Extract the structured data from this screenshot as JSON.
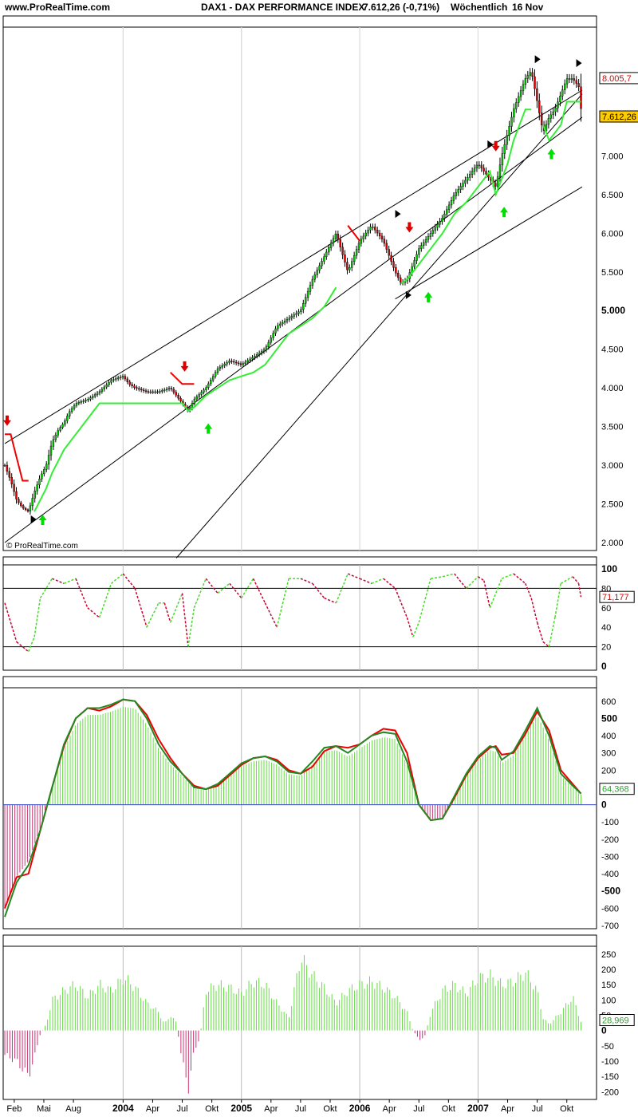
{
  "header": {
    "site": "www.ProRealTime.com",
    "title": "DAX1 - DAX PERFORMANCE INDEX",
    "quote": "7.612,26 (-0,71%)",
    "period": "Wöchentlich",
    "date": "16 Nov"
  },
  "watermark": "© ProRealTime.com",
  "x_axis": {
    "labels": [
      {
        "text": "Feb",
        "t": 0.08,
        "bold": false
      },
      {
        "text": "Mai",
        "t": 0.33,
        "bold": false
      },
      {
        "text": "Aug",
        "t": 0.58,
        "bold": false
      },
      {
        "text": "2004",
        "t": 1.0,
        "bold": true
      },
      {
        "text": "Apr",
        "t": 1.25,
        "bold": false
      },
      {
        "text": "Jul",
        "t": 1.5,
        "bold": false
      },
      {
        "text": "Okt",
        "t": 1.75,
        "bold": false
      },
      {
        "text": "2005",
        "t": 2.0,
        "bold": true
      },
      {
        "text": "Apr",
        "t": 2.25,
        "bold": false
      },
      {
        "text": "Jul",
        "t": 2.5,
        "bold": false
      },
      {
        "text": "Okt",
        "t": 2.75,
        "bold": false
      },
      {
        "text": "2006",
        "t": 3.0,
        "bold": true
      },
      {
        "text": "Apr",
        "t": 3.25,
        "bold": false
      },
      {
        "text": "Jul",
        "t": 3.5,
        "bold": false
      },
      {
        "text": "Okt",
        "t": 3.75,
        "bold": false
      },
      {
        "text": "2007",
        "t": 4.0,
        "bold": true
      },
      {
        "text": "Apr",
        "t": 4.25,
        "bold": false
      },
      {
        "text": "Jul",
        "t": 4.5,
        "bold": false
      },
      {
        "text": "Okt",
        "t": 4.75,
        "bold": false
      }
    ],
    "year_lines": [
      1.0,
      2.0,
      3.0,
      4.0
    ]
  },
  "colors": {
    "up": "#00cc00",
    "down": "#dd0000",
    "green_line": "#33ee33",
    "red_line": "#ee0000",
    "hist_pos": "#66dd44",
    "hist_neg": "#cc3377",
    "macd_line": "#228822",
    "price_label_bg": "#ffcc00",
    "grid": "#bbbbbb"
  },
  "chart_data": [
    {
      "type": "line",
      "name": "price",
      "ylim": [
        2000,
        8500
      ],
      "y_ticks": [
        {
          "v": 2000,
          "label": "2.000",
          "bold": false
        },
        {
          "v": 2500,
          "label": "2.500",
          "bold": false
        },
        {
          "v": 3000,
          "label": "3.000",
          "bold": false
        },
        {
          "v": 3500,
          "label": "3.500",
          "bold": false
        },
        {
          "v": 4000,
          "label": "4.000",
          "bold": false
        },
        {
          "v": 4500,
          "label": "4.500",
          "bold": false
        },
        {
          "v": 5000,
          "label": "5.000",
          "bold": true
        },
        {
          "v": 5500,
          "label": "5.500",
          "bold": false
        },
        {
          "v": 6000,
          "label": "6.000",
          "bold": false
        },
        {
          "v": 6500,
          "label": "6.500",
          "bold": false
        },
        {
          "v": 7000,
          "label": "7.000",
          "bold": false
        },
        {
          "v": 7500,
          "label": "7.500",
          "bold": false
        },
        {
          "v": 8000,
          "label": "8.000",
          "bold": false
        }
      ],
      "last_price": {
        "value": 7612.26,
        "label": "7.612,26"
      },
      "stop_level": {
        "value": 8005.7,
        "label": "8.005,7"
      },
      "x": [
        0.0,
        0.05,
        0.1,
        0.15,
        0.2,
        0.25,
        0.3,
        0.35,
        0.4,
        0.45,
        0.5,
        0.55,
        0.6,
        0.7,
        0.8,
        0.9,
        1.0,
        1.05,
        1.1,
        1.2,
        1.3,
        1.4,
        1.5,
        1.55,
        1.6,
        1.7,
        1.8,
        1.9,
        2.0,
        2.1,
        2.2,
        2.3,
        2.4,
        2.5,
        2.6,
        2.7,
        2.8,
        2.9,
        3.0,
        3.1,
        3.2,
        3.3,
        3.35,
        3.4,
        3.45,
        3.5,
        3.6,
        3.7,
        3.8,
        3.9,
        4.0,
        4.1,
        4.15,
        4.2,
        4.25,
        4.3,
        4.4,
        4.45,
        4.5,
        4.55,
        4.6,
        4.65,
        4.7,
        4.75,
        4.8,
        4.85,
        4.87
      ],
      "close": [
        3000,
        2800,
        2550,
        2450,
        2400,
        2650,
        2850,
        3000,
        3300,
        3450,
        3550,
        3700,
        3800,
        3850,
        3950,
        4100,
        4150,
        4050,
        4000,
        3950,
        3950,
        4000,
        3800,
        3700,
        3850,
        4000,
        4250,
        4350,
        4300,
        4400,
        4500,
        4800,
        4900,
        5000,
        5400,
        5700,
        6000,
        5500,
        5900,
        6100,
        5900,
        5500,
        5350,
        5400,
        5600,
        5800,
        6000,
        6200,
        6500,
        6700,
        6900,
        6700,
        6600,
        7000,
        7300,
        7600,
        8000,
        8100,
        7700,
        7300,
        7500,
        7600,
        7800,
        8000,
        8000,
        7900,
        7612
      ],
      "support": [
        null,
        null,
        null,
        null,
        null,
        2400,
        2550,
        2700,
        2900,
        3050,
        3200,
        3300,
        3400,
        3600,
        3800,
        3800,
        3800,
        3800,
        3800,
        3800,
        3800,
        3800,
        3800,
        3700,
        3750,
        3900,
        4000,
        4100,
        4150,
        4200,
        4300,
        4500,
        4700,
        4800,
        4900,
        5050,
        5300,
        null,
        null,
        null,
        null,
        null,
        5350,
        5400,
        5500,
        5600,
        5800,
        6000,
        6250,
        6400,
        6600,
        6800,
        6500,
        6700,
        6900,
        7200,
        7600,
        7600,
        null,
        7400,
        7200,
        7300,
        7400,
        7700,
        7700,
        7700,
        7700
      ],
      "resistance": [
        3400,
        3400,
        3100,
        2800,
        2800,
        null,
        null,
        null,
        null,
        null,
        null,
        null,
        null,
        null,
        null,
        null,
        null,
        null,
        null,
        null,
        null,
        4200,
        4050,
        4050,
        4050,
        null,
        null,
        null,
        null,
        null,
        null,
        null,
        null,
        null,
        null,
        null,
        null,
        6100,
        5900,
        null,
        null,
        null,
        null,
        null,
        null,
        null,
        null,
        null,
        null,
        null,
        null,
        null,
        7000,
        null,
        null,
        null,
        null,
        null,
        8000,
        null,
        null,
        null,
        null,
        null,
        null,
        null,
        8005
      ],
      "signals": [
        {
          "kind": "sell",
          "t": 0.02,
          "v": 3550
        },
        {
          "kind": "buy",
          "t": 0.32,
          "v": 2320
        },
        {
          "kind": "sell",
          "t": 1.52,
          "v": 4250
        },
        {
          "kind": "buy",
          "t": 1.72,
          "v": 3500
        },
        {
          "kind": "sell",
          "t": 3.42,
          "v": 6050
        },
        {
          "kind": "buy",
          "t": 3.58,
          "v": 5200
        },
        {
          "kind": "sell",
          "t": 4.15,
          "v": 7100
        },
        {
          "kind": "buy",
          "t": 4.22,
          "v": 6300
        },
        {
          "kind": "buy",
          "t": 4.62,
          "v": 7050
        }
      ],
      "pivots": [
        {
          "dir": "right",
          "t": 0.24,
          "v": 2300
        },
        {
          "dir": "right",
          "t": 3.32,
          "v": 6250
        },
        {
          "dir": "right",
          "t": 3.41,
          "v": 5200
        },
        {
          "dir": "right",
          "t": 4.1,
          "v": 7150
        },
        {
          "dir": "right",
          "t": 4.5,
          "v": 8250
        },
        {
          "dir": "right",
          "t": 4.85,
          "v": 8200
        }
      ],
      "trendlines": [
        {
          "t1": 0.0,
          "v1": 3280,
          "t2": 4.88,
          "v2": 7850
        },
        {
          "t1": 0.0,
          "v1": 2000,
          "t2": 4.88,
          "v2": 7500
        },
        {
          "t1": 1.45,
          "v1": 1800,
          "t2": 4.88,
          "v2": 7800
        },
        {
          "t1": 3.3,
          "v1": 5150,
          "t2": 4.88,
          "v2": 6600
        }
      ]
    },
    {
      "type": "line",
      "name": "stochastic",
      "ylim": [
        0,
        100
      ],
      "y_ticks": [
        {
          "v": 0,
          "label": "0",
          "bold": true
        },
        {
          "v": 20,
          "label": "20",
          "bold": false
        },
        {
          "v": 40,
          "label": "40",
          "bold": false
        },
        {
          "v": 60,
          "label": "60",
          "bold": false
        },
        {
          "v": 80,
          "label": "80",
          "bold": false
        },
        {
          "v": 100,
          "label": "100",
          "bold": true
        }
      ],
      "levels": [
        20,
        80
      ],
      "last": {
        "value": 71.177,
        "label": "71,177"
      },
      "x": [
        0.0,
        0.1,
        0.2,
        0.25,
        0.3,
        0.4,
        0.5,
        0.6,
        0.7,
        0.8,
        0.9,
        1.0,
        1.1,
        1.2,
        1.3,
        1.35,
        1.4,
        1.5,
        1.55,
        1.6,
        1.7,
        1.8,
        1.9,
        2.0,
        2.1,
        2.2,
        2.3,
        2.4,
        2.5,
        2.6,
        2.7,
        2.8,
        2.9,
        3.0,
        3.1,
        3.2,
        3.3,
        3.4,
        3.45,
        3.5,
        3.6,
        3.7,
        3.8,
        3.9,
        4.0,
        4.05,
        4.1,
        4.2,
        4.3,
        4.4,
        4.45,
        4.5,
        4.55,
        4.6,
        4.65,
        4.7,
        4.8,
        4.85,
        4.87
      ],
      "values": [
        65,
        25,
        15,
        30,
        70,
        90,
        85,
        90,
        60,
        50,
        85,
        95,
        80,
        40,
        65,
        65,
        45,
        75,
        20,
        60,
        90,
        75,
        85,
        70,
        90,
        65,
        40,
        90,
        90,
        85,
        70,
        65,
        95,
        90,
        85,
        90,
        80,
        50,
        30,
        45,
        90,
        92,
        95,
        80,
        92,
        88,
        60,
        90,
        95,
        85,
        70,
        45,
        25,
        20,
        50,
        85,
        92,
        85,
        71
      ]
    },
    {
      "type": "bar",
      "name": "macd",
      "ylim": [
        -700,
        650
      ],
      "y_ticks": [
        {
          "v": -700,
          "label": "-700",
          "bold": false
        },
        {
          "v": -600,
          "label": "-600",
          "bold": false
        },
        {
          "v": -500,
          "label": "-500",
          "bold": true
        },
        {
          "v": -400,
          "label": "-400",
          "bold": false
        },
        {
          "v": -300,
          "label": "-300",
          "bold": false
        },
        {
          "v": -200,
          "label": "-200",
          "bold": false
        },
        {
          "v": -100,
          "label": "-100",
          "bold": false
        },
        {
          "v": 0,
          "label": "0",
          "bold": true
        },
        {
          "v": 100,
          "label": "100",
          "bold": false
        },
        {
          "v": 200,
          "label": "200",
          "bold": false
        },
        {
          "v": 300,
          "label": "300",
          "bold": false
        },
        {
          "v": 400,
          "label": "400",
          "bold": false
        },
        {
          "v": 500,
          "label": "500",
          "bold": true
        },
        {
          "v": 600,
          "label": "600",
          "bold": false
        }
      ],
      "last": {
        "value": 64.368,
        "label": "64,368"
      },
      "x": [
        0.0,
        0.1,
        0.2,
        0.3,
        0.4,
        0.5,
        0.6,
        0.7,
        0.8,
        0.9,
        1.0,
        1.1,
        1.2,
        1.3,
        1.4,
        1.5,
        1.6,
        1.7,
        1.8,
        1.9,
        2.0,
        2.1,
        2.2,
        2.3,
        2.4,
        2.5,
        2.6,
        2.7,
        2.8,
        2.9,
        3.0,
        3.1,
        3.2,
        3.3,
        3.4,
        3.5,
        3.6,
        3.7,
        3.8,
        3.9,
        4.0,
        4.1,
        4.15,
        4.2,
        4.3,
        4.4,
        4.5,
        4.6,
        4.7,
        4.8,
        4.87
      ],
      "values": [
        -650,
        -450,
        -350,
        -150,
        100,
        350,
        500,
        560,
        560,
        580,
        610,
        600,
        500,
        350,
        250,
        180,
        100,
        90,
        120,
        180,
        240,
        270,
        280,
        250,
        190,
        180,
        250,
        330,
        340,
        300,
        350,
        400,
        420,
        410,
        250,
        0,
        -90,
        -80,
        50,
        180,
        280,
        340,
        330,
        260,
        310,
        430,
        560,
        400,
        180,
        110,
        64
      ],
      "signal": [
        -600,
        -420,
        -400,
        -150,
        100,
        340,
        500,
        560,
        545,
        570,
        610,
        600,
        520,
        380,
        270,
        180,
        110,
        90,
        110,
        170,
        230,
        270,
        280,
        260,
        200,
        180,
        220,
        310,
        340,
        330,
        350,
        400,
        440,
        430,
        300,
        0,
        -90,
        -80,
        40,
        170,
        270,
        330,
        340,
        290,
        300,
        410,
        540,
        430,
        200,
        120,
        64
      ]
    },
    {
      "type": "bar",
      "name": "momentum",
      "ylim": [
        -215,
        265
      ],
      "y_ticks": [
        {
          "v": -200,
          "label": "-200",
          "bold": false
        },
        {
          "v": -150,
          "label": "-150",
          "bold": false
        },
        {
          "v": -100,
          "label": "-100",
          "bold": false
        },
        {
          "v": -50,
          "label": "-50",
          "bold": false
        },
        {
          "v": 0,
          "label": "0",
          "bold": true
        },
        {
          "v": 50,
          "label": "50",
          "bold": false
        },
        {
          "v": 100,
          "label": "100",
          "bold": false
        },
        {
          "v": 150,
          "label": "150",
          "bold": false
        },
        {
          "v": 200,
          "label": "200",
          "bold": false
        },
        {
          "v": 250,
          "label": "250",
          "bold": false
        }
      ],
      "last": {
        "value": 28.969,
        "label": "28,969"
      },
      "x": [
        0.0,
        0.1,
        0.2,
        0.25,
        0.3,
        0.35,
        0.4,
        0.5,
        0.6,
        0.7,
        0.8,
        0.9,
        1.0,
        1.05,
        1.1,
        1.2,
        1.3,
        1.35,
        1.4,
        1.45,
        1.5,
        1.55,
        1.6,
        1.65,
        1.7,
        1.8,
        1.9,
        2.0,
        2.1,
        2.2,
        2.3,
        2.4,
        2.5,
        2.6,
        2.7,
        2.8,
        2.9,
        3.0,
        3.1,
        3.2,
        3.3,
        3.4,
        3.45,
        3.5,
        3.55,
        3.6,
        3.7,
        3.8,
        3.9,
        4.0,
        4.1,
        4.2,
        4.3,
        4.4,
        4.5,
        4.55,
        4.6,
        4.7,
        4.8,
        4.87
      ],
      "values": [
        -80,
        -100,
        -150,
        -90,
        -10,
        20,
        100,
        130,
        150,
        110,
        150,
        130,
        170,
        160,
        140,
        90,
        60,
        20,
        50,
        25,
        -100,
        -190,
        -70,
        -20,
        130,
        150,
        140,
        120,
        160,
        150,
        90,
        40,
        240,
        180,
        140,
        90,
        130,
        150,
        160,
        140,
        110,
        60,
        0,
        -30,
        -20,
        60,
        130,
        150,
        120,
        170,
        180,
        150,
        160,
        190,
        130,
        40,
        20,
        60,
        110,
        29
      ]
    }
  ]
}
